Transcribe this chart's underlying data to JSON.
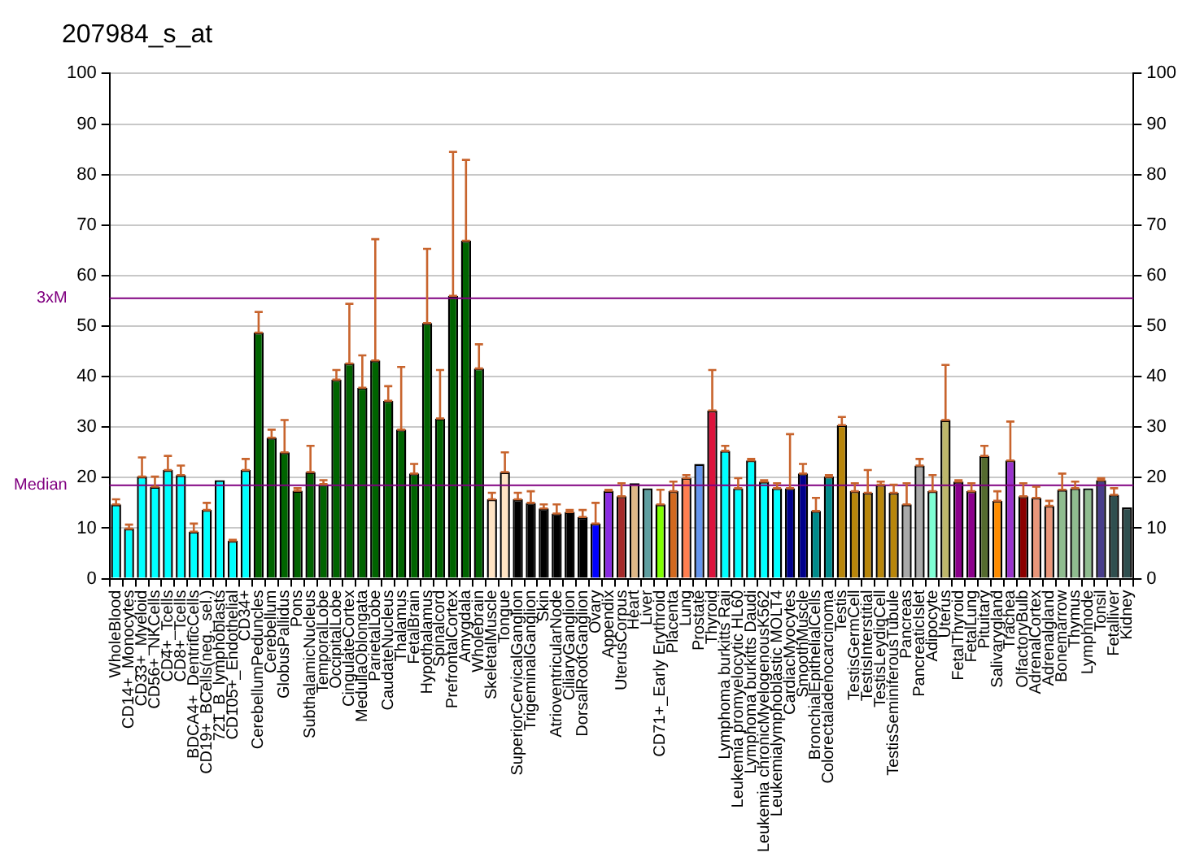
{
  "chart_data": {
    "type": "bar",
    "title": "207984_s_at",
    "categories": [
      "WholeBlood",
      "CD14+_Monocytes",
      "CD33+_Myeloid",
      "CD56+_NKCells",
      "CD4+_Tcells",
      "CD8+_Tcells",
      "BDCA4+_DentriticCells",
      "CD19+_BCells(neg._sel.)",
      "721_B_lymphoblasts",
      "CD105+_Endothelial",
      "CD34+",
      "CerebellumPeduncles",
      "Cerebellum",
      "GlobusPallidus",
      "Pons",
      "SubthalamicNucleus",
      "TemporalLobe",
      "OccipitalLobe",
      "CingulateCortex",
      "MedullaOblongata",
      "ParietalLobe",
      "CaudateNucleus",
      "Thalamus",
      "FetalBrain",
      "Hypothalamus",
      "Spinalcord",
      "PrefrontalCortex",
      "Amygdala",
      "Wholebrain",
      "SkeletalMuscle",
      "Tongue",
      "SuperiorCervicalGanglion",
      "TrigeminalGanglion",
      "Skin",
      "AtrioventricularNode",
      "CiliaryGanglion",
      "DorsalRootGanglion",
      "Ovary",
      "Appendix",
      "UterusCorpus",
      "Heart",
      "Liver",
      "CD71+_Early Erythroid",
      "Placenta",
      "Lung",
      "Prostate",
      "Thyroid",
      "Lymphoma burkitts Raji",
      "Leukemia promyelocytic HL60",
      "Lymphoma burkitts Daudi",
      "Leukemia chronicMyelogenousK562",
      "Leukemialymphoblastic MOLT4",
      "CardiacMyocytes",
      "SmoothMuscle",
      "BronchialEpithelialCells",
      "Colorectaladenocarcinoma",
      "Testis",
      "TestisGermCell",
      "TestisInterstitial",
      "TestisLeydigCell",
      "TestisSeminiferousTubule",
      "Pancreas",
      "PancreaticIslet",
      "Adipocyte",
      "Uterus",
      "FetalThyroid",
      "FetalLung",
      "Pituitary",
      "Salivarygland",
      "Trachea",
      "OlfactoryBulb",
      "AdrenalCortex",
      "Adrenalgland",
      "Bonemarrow",
      "Thymus",
      "Lymphnode",
      "Tonsil",
      "Fetalliver",
      "Kidney"
    ],
    "values": [
      14.7,
      9.9,
      20.2,
      18.2,
      21.5,
      20.5,
      9.3,
      13.6,
      19.5,
      7.5,
      21.5,
      48.7,
      27.9,
      25,
      17.4,
      21.1,
      18.7,
      39.4,
      42.6,
      37.8,
      43.2,
      35.2,
      29.5,
      20.8,
      50.6,
      31.7,
      56,
      66.9,
      41.6,
      15.7,
      21.1,
      15.7,
      15,
      13.9,
      12.9,
      13.2,
      12.2,
      10.9,
      17.4,
      16.3,
      18.9,
      17.9,
      14.7,
      17.3,
      19.9,
      22.7,
      33.3,
      25.3,
      17.9,
      23.4,
      19.2,
      17.9,
      17.9,
      20.8,
      13.4,
      20.2,
      30.4,
      17.3,
      17,
      18.6,
      17,
      14.7,
      22.4,
      17.3,
      31.4,
      19.2,
      17.3,
      24.3,
      15.4,
      23.4,
      16.3,
      16,
      14.4,
      17.6,
      17.9,
      17.9,
      19.5,
      16.6,
      14.1
    ],
    "errors": [
      [
        14.7,
        15.7
      ],
      [
        9.9,
        10.7
      ],
      [
        20.2,
        24
      ],
      [
        18.2,
        20.2
      ],
      [
        21.5,
        24.3
      ],
      [
        20.5,
        22.4
      ],
      [
        9.3,
        10.9
      ],
      [
        13.6,
        15
      ],
      null,
      [
        7.5,
        7.7
      ],
      [
        21.5,
        23.7
      ],
      [
        48.7,
        52.8
      ],
      [
        27.9,
        29.5
      ],
      [
        25,
        31.4
      ],
      [
        17.4,
        17.9
      ],
      [
        21.1,
        26.3
      ],
      [
        18.7,
        19.5
      ],
      [
        39.4,
        41.3
      ],
      [
        42.6,
        54.4
      ],
      [
        37.8,
        44.2
      ],
      [
        43.2,
        67.2
      ],
      [
        35.2,
        38.1
      ],
      [
        29.5,
        41.9
      ],
      [
        20.8,
        22.7
      ],
      [
        50.6,
        65.3
      ],
      [
        31.7,
        41.3
      ],
      [
        56,
        84.5
      ],
      [
        66.9,
        82.9
      ],
      [
        41.6,
        46.4
      ],
      [
        15.7,
        17
      ],
      [
        21.1,
        25
      ],
      [
        15.7,
        17
      ],
      [
        15,
        17.3
      ],
      [
        13.9,
        14.7
      ],
      [
        12.9,
        14.7
      ],
      [
        13.2,
        13.6
      ],
      [
        12.2,
        13.6
      ],
      [
        10.9,
        15
      ],
      [
        17.4,
        17.6
      ],
      [
        16.3,
        18.9
      ],
      null,
      null,
      [
        14.7,
        17.6
      ],
      [
        17.3,
        19.2
      ],
      [
        19.9,
        20.5
      ],
      null,
      [
        33.3,
        41.3
      ],
      [
        25.3,
        26.3
      ],
      [
        17.9,
        19.9
      ],
      [
        23.4,
        23.7
      ],
      [
        19.2,
        19.5
      ],
      [
        17.9,
        18.9
      ],
      [
        17.9,
        28.6
      ],
      [
        20.8,
        22.7
      ],
      [
        13.4,
        16
      ],
      [
        20.2,
        20.5
      ],
      [
        30.4,
        32
      ],
      [
        17.3,
        18.9
      ],
      [
        17,
        21.5
      ],
      [
        18.6,
        19.2
      ],
      [
        17,
        18.6
      ],
      [
        14.7,
        18.9
      ],
      [
        22.4,
        23.7
      ],
      [
        17.3,
        20.5
      ],
      [
        31.4,
        42.3
      ],
      [
        19.2,
        19.5
      ],
      [
        17.3,
        18.9
      ],
      [
        24.3,
        26.3
      ],
      [
        15.4,
        17.3
      ],
      [
        23.4,
        31.1
      ],
      [
        16.3,
        18.9
      ],
      [
        16,
        18.2
      ],
      [
        14.4,
        15.4
      ],
      [
        17.6,
        20.8
      ],
      [
        17.9,
        19.2
      ],
      null,
      [
        19.5,
        19.9
      ],
      [
        16.6,
        17.9
      ],
      null
    ],
    "colors": [
      "#00ffff",
      "#00ffff",
      "#00ffff",
      "#00ffff",
      "#00ffff",
      "#00ffff",
      "#00ffff",
      "#00ffff",
      "#00ffff",
      "#00ffff",
      "#00ffff",
      "#006400",
      "#006400",
      "#006400",
      "#006400",
      "#006400",
      "#006400",
      "#006400",
      "#006400",
      "#006400",
      "#006400",
      "#006400",
      "#006400",
      "#006400",
      "#006400",
      "#006400",
      "#006400",
      "#006400",
      "#006400",
      "#ffe4c4",
      "#ffe4c4",
      "#000000",
      "#000000",
      "#000000",
      "#000000",
      "#000000",
      "#000000",
      "#0000ff",
      "#8a2be2",
      "#a52a2a",
      "#deb887",
      "#5f9ea0",
      "#7fff00",
      "#d2691e",
      "#ff7f50",
      "#6495ed",
      "#dc143c",
      "#00ffff",
      "#00ffff",
      "#00ffff",
      "#00ffff",
      "#00ffff",
      "#00008b",
      "#00008b",
      "#008b8b",
      "#008b8b",
      "#b8860b",
      "#b8860b",
      "#b8860b",
      "#b8860b",
      "#b8860b",
      "#a9a9a9",
      "#a9a9a9",
      "#7fffd4",
      "#bdb76b",
      "#8b008b",
      "#8b008b",
      "#556b2f",
      "#ff8c00",
      "#9932cc",
      "#8b0000",
      "#e9967a",
      "#e9967a",
      "#8fbc8f",
      "#8fbc8f",
      "#8fbc8f",
      "#483d8b",
      "#2f4f4f",
      "#2f4f4f"
    ],
    "ylim": [
      0,
      100
    ],
    "yticks": [
      0,
      10,
      20,
      30,
      40,
      50,
      60,
      70,
      80,
      90,
      100
    ],
    "y2lim": [
      0,
      100
    ],
    "y2ticks": [
      0,
      10,
      20,
      30,
      40,
      50,
      60,
      70,
      80,
      90,
      100
    ],
    "ref_lines": [
      {
        "axis": "y",
        "value": 55.5,
        "label": "3xM",
        "color": "#800080"
      },
      {
        "axis": "y",
        "value": 18.5,
        "label": "Median",
        "color": "#800080"
      }
    ],
    "grid": "y",
    "legend": false
  }
}
